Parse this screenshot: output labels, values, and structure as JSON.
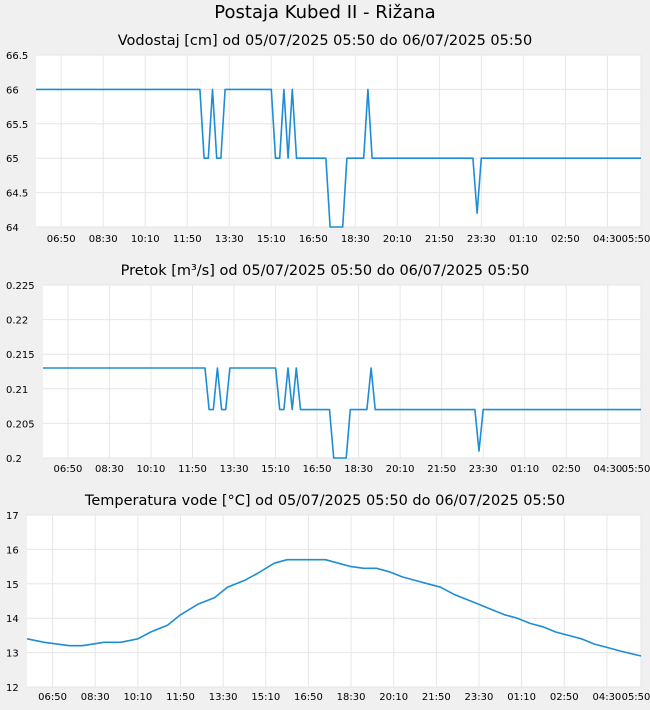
{
  "page_title": "Postaja Kubed II - Rižana",
  "colors": {
    "line": "#1f8dd6",
    "grid": "#e6e6e6",
    "background": "#f0f0f0",
    "plot": "#ffffff"
  },
  "chart_data": [
    {
      "type": "line",
      "title": "Vodostaj [cm] od 05/07/2025 05:50 do 06/07/2025 05:50",
      "xlabel": "",
      "ylabel": "",
      "ylim": [
        64,
        66.5
      ],
      "y_ticks": [
        "66.5",
        "66",
        "65.5",
        "65",
        "64.5",
        "64"
      ],
      "x_ticks": [
        "06:50",
        "08:30",
        "10:10",
        "11:50",
        "13:30",
        "15:10",
        "16:50",
        "18:30",
        "20:10",
        "21:50",
        "23:30",
        "01:10",
        "02:50",
        "04:30",
        "05:50"
      ],
      "grid": true,
      "series": [
        {
          "x": [
            "05:50",
            "12:20",
            "12:30",
            "12:40",
            "12:50",
            "13:00",
            "13:10",
            "13:20",
            "13:40",
            "13:50",
            "14:00",
            "15:10",
            "15:20",
            "15:30",
            "15:40",
            "15:50",
            "16:00",
            "16:10",
            "16:20",
            "16:30",
            "16:40",
            "17:20",
            "17:30",
            "17:40",
            "18:00",
            "18:10",
            "18:20",
            "18:50",
            "19:00",
            "19:10",
            "19:20",
            "19:30",
            "21:20",
            "23:10",
            "23:20",
            "23:30",
            "23:40",
            "05:50"
          ],
          "y": [
            66,
            66,
            65,
            65,
            66,
            65,
            65,
            66,
            66,
            66,
            66,
            66,
            65,
            65,
            66,
            65,
            66,
            65,
            65,
            65,
            65,
            65,
            64,
            64,
            64,
            65,
            65,
            65,
            66,
            65,
            65,
            65,
            65,
            65,
            64.2,
            65,
            65,
            65
          ]
        }
      ]
    },
    {
      "type": "line",
      "title": "Pretok [m³/s] od 05/07/2025 05:50 do 06/07/2025 05:50",
      "xlabel": "",
      "ylabel": "",
      "ylim": [
        0.2,
        0.225
      ],
      "y_ticks": [
        "0.225",
        "0.22",
        "0.215",
        "0.21",
        "0.205",
        "0.2"
      ],
      "x_ticks": [
        "06:50",
        "08:30",
        "10:10",
        "11:50",
        "13:30",
        "15:10",
        "16:50",
        "18:30",
        "20:10",
        "21:50",
        "23:30",
        "01:10",
        "02:50",
        "04:30",
        "05:50"
      ],
      "grid": true,
      "series": [
        {
          "x": [
            "05:50",
            "12:20",
            "12:30",
            "12:40",
            "12:50",
            "13:00",
            "13:10",
            "13:20",
            "13:40",
            "13:50",
            "14:00",
            "15:10",
            "15:20",
            "15:30",
            "15:40",
            "15:50",
            "16:00",
            "16:10",
            "16:20",
            "16:30",
            "16:40",
            "17:20",
            "17:30",
            "17:40",
            "18:00",
            "18:10",
            "18:20",
            "18:50",
            "19:00",
            "19:10",
            "19:20",
            "19:30",
            "21:20",
            "23:10",
            "23:20",
            "23:30",
            "23:40",
            "05:50"
          ],
          "y": [
            0.213,
            0.213,
            0.207,
            0.207,
            0.213,
            0.207,
            0.207,
            0.213,
            0.213,
            0.213,
            0.213,
            0.213,
            0.207,
            0.207,
            0.213,
            0.207,
            0.213,
            0.207,
            0.207,
            0.207,
            0.207,
            0.207,
            0.2,
            0.2,
            0.2,
            0.207,
            0.207,
            0.207,
            0.213,
            0.207,
            0.207,
            0.207,
            0.207,
            0.207,
            0.201,
            0.207,
            0.207,
            0.207
          ]
        }
      ]
    },
    {
      "type": "line",
      "title": "Temperatura vode [°C] od 05/07/2025 05:50 do 06/07/2025 05:50",
      "xlabel": "",
      "ylabel": "",
      "ylim": [
        12,
        17
      ],
      "y_ticks": [
        "17",
        "16",
        "15",
        "14",
        "13",
        "12"
      ],
      "x_ticks": [
        "06:50",
        "08:30",
        "10:10",
        "11:50",
        "13:30",
        "15:10",
        "16:50",
        "18:30",
        "20:10",
        "21:50",
        "23:30",
        "01:10",
        "02:50",
        "04:30",
        "05:50"
      ],
      "grid": true,
      "series": [
        {
          "x": [
            "05:50",
            "06:30",
            "07:30",
            "08:00",
            "08:50",
            "09:30",
            "10:10",
            "10:40",
            "11:20",
            "11:50",
            "12:30",
            "13:10",
            "13:40",
            "14:20",
            "14:50",
            "15:30",
            "16:00",
            "17:00",
            "17:30",
            "18:00",
            "18:30",
            "19:00",
            "19:30",
            "20:00",
            "20:30",
            "21:00",
            "21:30",
            "22:00",
            "22:30",
            "23:00",
            "23:30",
            "00:00",
            "00:30",
            "01:00",
            "01:30",
            "02:00",
            "02:30",
            "03:00",
            "03:30",
            "04:00",
            "04:30",
            "05:00",
            "05:50"
          ],
          "y": [
            13.4,
            13.3,
            13.2,
            13.2,
            13.3,
            13.3,
            13.4,
            13.6,
            13.8,
            14.1,
            14.4,
            14.6,
            14.9,
            15.1,
            15.3,
            15.6,
            15.7,
            15.7,
            15.7,
            15.6,
            15.5,
            15.45,
            15.45,
            15.35,
            15.2,
            15.1,
            15.0,
            14.9,
            14.7,
            14.55,
            14.4,
            14.25,
            14.1,
            14.0,
            13.85,
            13.75,
            13.6,
            13.5,
            13.4,
            13.25,
            13.15,
            13.05,
            12.9
          ]
        }
      ]
    }
  ]
}
